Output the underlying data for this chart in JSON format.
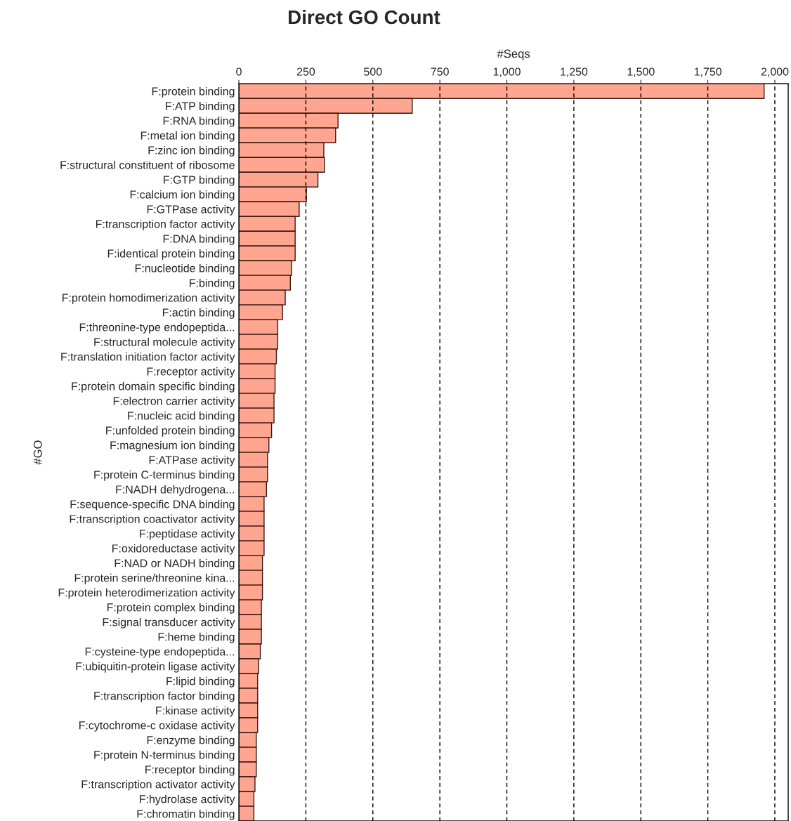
{
  "chart_data": {
    "type": "bar",
    "orientation": "horizontal",
    "title": "Direct GO Count",
    "xlabel": "#Seqs",
    "ylabel": "#GO",
    "categories": [
      "F:protein binding",
      "F:ATP binding",
      "F:RNA binding",
      "F:metal ion binding",
      "F:zinc ion binding",
      "F:structural constituent of ribosome",
      "F:GTP binding",
      "F:calcium ion binding",
      "F:GTPase activity",
      "F:transcription factor activity",
      "F:DNA binding",
      "F:identical protein binding",
      "F:nucleotide binding",
      "F:binding",
      "F:protein homodimerization activity",
      "F:actin binding",
      "F:threonine-type endopeptida...",
      "F:structural molecule activity",
      "F:translation initiation factor activity",
      "F:receptor activity",
      "F:protein domain specific binding",
      "F:electron carrier activity",
      "F:nucleic acid binding",
      "F:unfolded protein binding",
      "F:magnesium ion binding",
      "F:ATPase activity",
      "F:protein C-terminus binding",
      "F:NADH dehydrogena...",
      "F:sequence-specific DNA binding",
      "F:transcription coactivator activity",
      "F:peptidase activity",
      "F:oxidoreductase activity",
      "F:NAD or NADH binding",
      "F:protein serine/threonine kina...",
      "F:protein heterodimerization activity",
      "F:protein complex binding",
      "F:signal transducer activity",
      "F:heme binding",
      "F:cysteine-type endopeptida...",
      "F:ubiquitin-protein ligase activity",
      "F:lipid binding",
      "F:transcription factor binding",
      "F:kinase activity",
      "F:cytochrome-c oxidase activity",
      "F:enzyme binding",
      "F:protein N-terminus binding",
      "F:receptor binding",
      "F:transcription activator activity",
      "F:hydrolase activity",
      "F:chromatin binding"
    ],
    "values": [
      1960,
      647,
      370,
      361,
      317,
      319,
      295,
      252,
      225,
      210,
      210,
      210,
      197,
      192,
      173,
      163,
      145,
      145,
      140,
      135,
      135,
      131,
      131,
      122,
      112,
      107,
      107,
      103,
      94,
      94,
      94,
      94,
      88,
      88,
      88,
      84,
      84,
      84,
      80,
      74,
      70,
      70,
      70,
      70,
      65,
      65,
      65,
      60,
      56,
      56
    ],
    "color": "#ffa590",
    "xlim": [
      0,
      2050
    ],
    "xticks": [
      0,
      250,
      500,
      750,
      {
        "value": 1000,
        "label": "1,000"
      },
      {
        "value": 1250,
        "label": "1,250"
      },
      {
        "value": 1500,
        "label": "1,500"
      },
      {
        "value": 1750,
        "label": "1,750"
      },
      {
        "value": 2000,
        "label": "2,000"
      }
    ],
    "grid": "x",
    "legend": false
  }
}
